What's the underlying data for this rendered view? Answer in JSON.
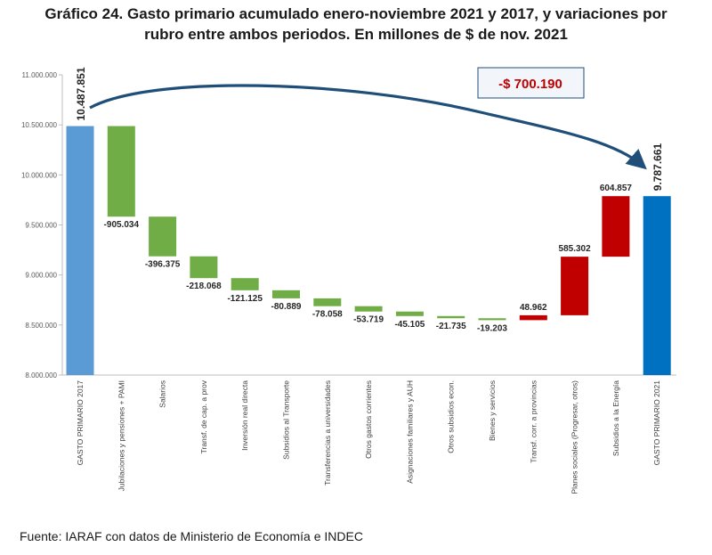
{
  "title_line1": "Gráfico 24. Gasto primario acumulado enero-noviembre 2021 y 2017, y variaciones por",
  "title_line2": "rubro entre ambos periodos. En millones de $ de nov. 2021",
  "source": "Fuente: IARAF con datos de Ministerio de Economía e INDEC",
  "colors": {
    "total_2017": "#5b9bd5",
    "total_2021": "#0070c0",
    "decrease": "#70ad47",
    "increase": "#c00000",
    "annotation": "#c00000",
    "arrow": "#1f4e79"
  },
  "chart_data": {
    "type": "waterfall",
    "title": "Gasto primario acumulado enero-noviembre 2021 y 2017, y variaciones por rubro entre ambos periodos",
    "ylabel": "Millones de $ de nov. 2021",
    "ylim": [
      8000000,
      11000000
    ],
    "yticks": [
      8000000,
      8500000,
      9000000,
      9500000,
      10000000,
      10500000,
      11000000
    ],
    "ytick_labels": [
      "8.000.000",
      "8.500.000",
      "9.000.000",
      "9.500.000",
      "10.000.000",
      "10.500.000",
      "11.000.000"
    ],
    "bars": [
      {
        "category": "GASTO PRIMARIO 2017",
        "kind": "total",
        "value": 10487851,
        "label": "10.487.851"
      },
      {
        "category": "Jubilaciones y pensiones + PAMI",
        "kind": "decrease",
        "value": -905034,
        "label": "-905.034"
      },
      {
        "category": "Salarios",
        "kind": "decrease",
        "value": -396375,
        "label": "-396.375"
      },
      {
        "category": "Transf. de cap. a prov",
        "kind": "decrease",
        "value": -218068,
        "label": "-218.068"
      },
      {
        "category": "Inversión real directa",
        "kind": "decrease",
        "value": -121125,
        "label": "-121.125"
      },
      {
        "category": "Subsidios al Transporte",
        "kind": "decrease",
        "value": -80889,
        "label": "-80.889"
      },
      {
        "category": "Transferencias a universidades",
        "kind": "decrease",
        "value": -78058,
        "label": "-78.058"
      },
      {
        "category": "Otros gastos corrientes",
        "kind": "decrease",
        "value": -53719,
        "label": "-53.719"
      },
      {
        "category": "Asignaciones familiares y AUH",
        "kind": "decrease",
        "value": -45105,
        "label": "-45.105"
      },
      {
        "category": "Otros subsidios econ.",
        "kind": "decrease",
        "value": -21735,
        "label": "-21.735"
      },
      {
        "category": "Bienes y servicios",
        "kind": "decrease",
        "value": -19203,
        "label": "-19.203"
      },
      {
        "category": "Transf. corr. a provincias",
        "kind": "increase",
        "value": 48962,
        "label": "48.962"
      },
      {
        "category": "Planes sociales (Progresar, otros)",
        "kind": "increase",
        "value": 585302,
        "label": "585.302"
      },
      {
        "category": "Subsidios a la Energía",
        "kind": "increase",
        "value": 604857,
        "label": "604.857"
      },
      {
        "category": "GASTO PRIMARIO 2021",
        "kind": "total",
        "value": 9787661,
        "label": "9.787.661"
      }
    ],
    "annotation": {
      "text": "-$ 700.190",
      "from": "GASTO PRIMARIO 2017",
      "to": "GASTO PRIMARIO 2021"
    },
    "legend": "none",
    "grid": false
  }
}
